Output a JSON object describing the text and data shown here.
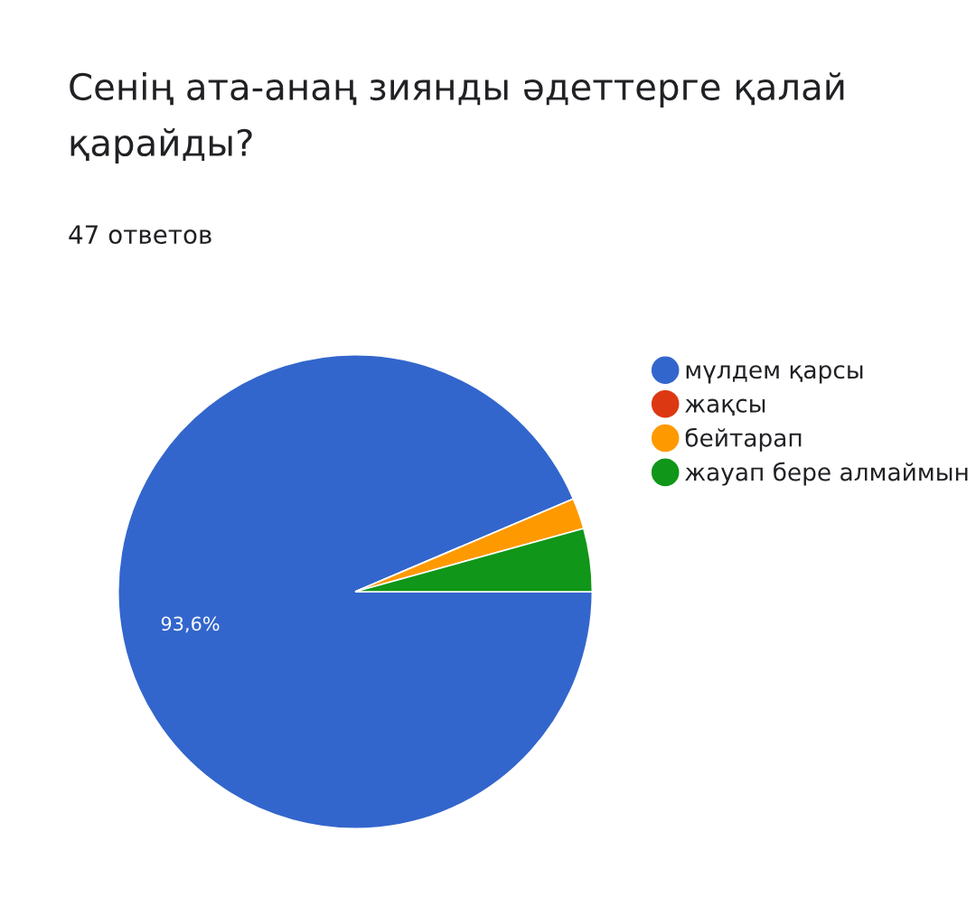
{
  "chart_data": {
    "type": "pie",
    "title": "Сенің ата-анаң зиянды әдеттерге қалай қарайды?",
    "subtitle": "47 ответов",
    "categories": [
      "мүлдем қарсы",
      "жақсы",
      "бейтарап",
      "жауап бере алмаймын"
    ],
    "values": [
      93.6,
      0,
      2.1,
      4.3
    ],
    "colors": [
      "#3366cc",
      "#dc3912",
      "#ff9900",
      "#109618"
    ],
    "value_labels": [
      "93,6%",
      null,
      null,
      null
    ],
    "legend": "right"
  }
}
